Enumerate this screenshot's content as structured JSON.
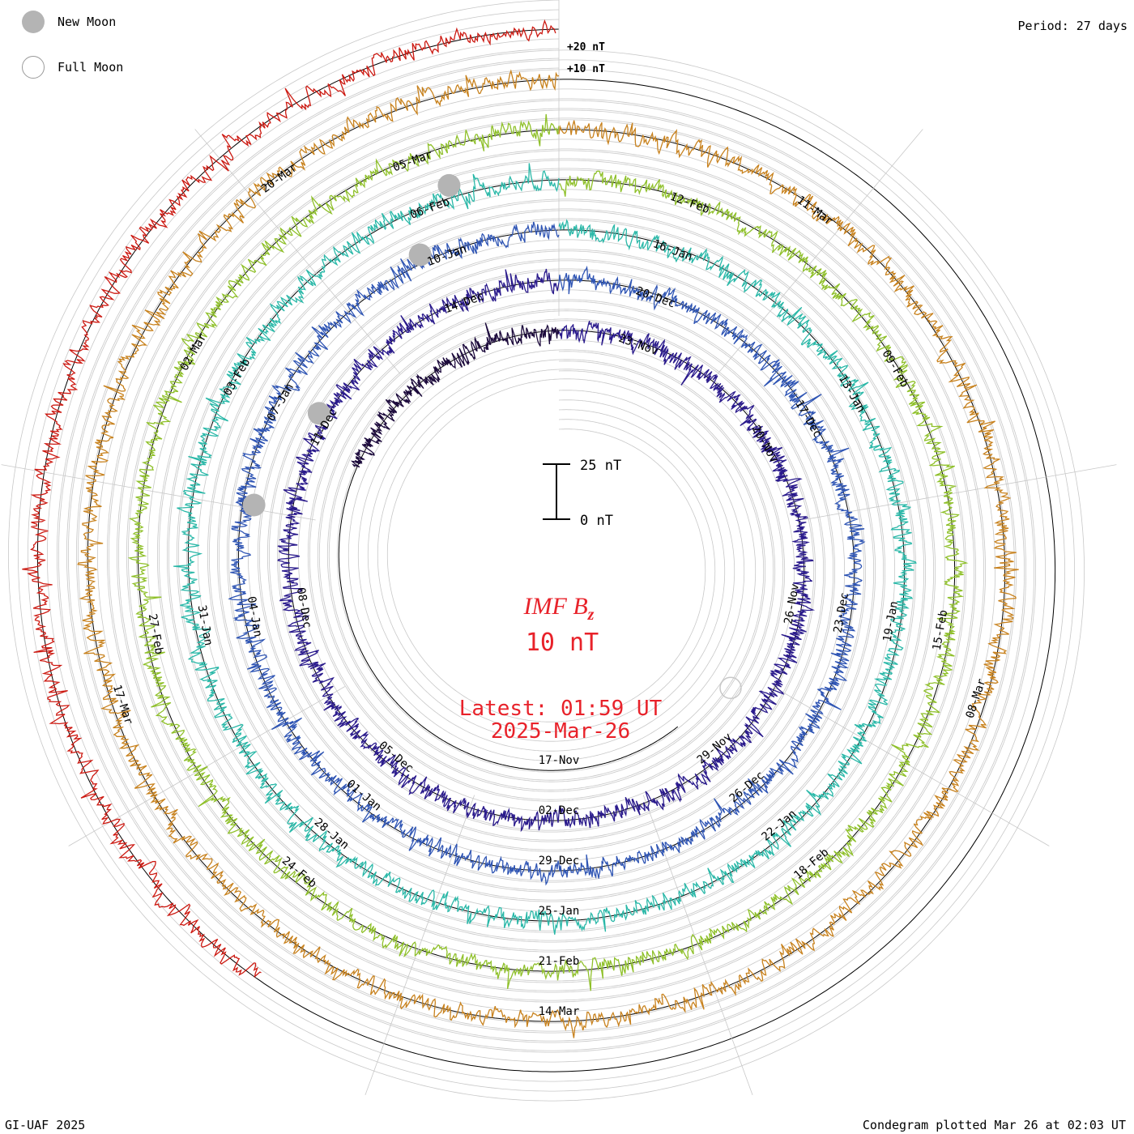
{
  "header": {
    "period_label": "Period: 27 days"
  },
  "legend": {
    "new_moon_label": "New Moon",
    "full_moon_label": "Full Moon",
    "new_moon_color": "#b4b4b4",
    "full_moon_color": "#ffffff"
  },
  "footer": {
    "credit": "GI-UAF 2025",
    "plotted": "Condegram plotted Mar 26 at 02:03 UT"
  },
  "center": {
    "title_main": "IMF B",
    "title_sub": "z",
    "scale_value": "10 nT",
    "latest_line1": "Latest: 01:59 UT",
    "latest_line2": "2025-Mar-26",
    "color": "#e8222a"
  },
  "scale_bar": {
    "top_label": "25 nT",
    "bottom_label": "0 nT"
  },
  "chart_data": {
    "type": "line",
    "subtype": "condegram spiral",
    "title": "IMF Bz",
    "units": "nT",
    "period_days": 27,
    "reference_labels": [
      "+20 nT",
      "+10 nT"
    ],
    "series": [
      {
        "name": "turn-1",
        "color": "#1c0a3c",
        "date_labels": [
          "17-Nov"
        ]
      },
      {
        "name": "turn-2",
        "color": "#2a1a8c",
        "date_labels": [
          "23-Nov",
          "20-Nov",
          "26-Nov",
          "29-Nov",
          "02-Dec",
          "05-Dec",
          "08-Dec",
          "11-Dec",
          "14-Dec"
        ]
      },
      {
        "name": "turn-3",
        "color": "#2f55b4",
        "date_labels": [
          "20-Dec",
          "17-Dec",
          "23-Dec",
          "26-Dec",
          "29-Dec",
          "01-Jan",
          "04-Jan",
          "07-Jan",
          "10-Jan"
        ]
      },
      {
        "name": "turn-4",
        "color": "#2ab8a8",
        "date_labels": [
          "16-Jan",
          "13-Jan",
          "19-Jan",
          "22-Jan",
          "25-Jan",
          "28-Jan",
          "31-Jan",
          "03-Feb",
          "06-Feb"
        ]
      },
      {
        "name": "turn-5",
        "color": "#8fc02a",
        "date_labels": [
          "12-Feb",
          "09-Feb",
          "15-Feb",
          "18-Feb",
          "21-Feb",
          "24-Feb",
          "27-Feb",
          "02-Mar",
          "05-Mar"
        ]
      },
      {
        "name": "turn-6",
        "color": "#c8821e",
        "date_labels": [
          "11-Mar",
          "08-Mar",
          "14-Mar",
          "17-Mar",
          "20-Mar"
        ]
      },
      {
        "name": "turn-7",
        "color": "#cc1a12",
        "date_labels": []
      }
    ],
    "moon_markers": {
      "new": 4,
      "full": 1
    }
  }
}
